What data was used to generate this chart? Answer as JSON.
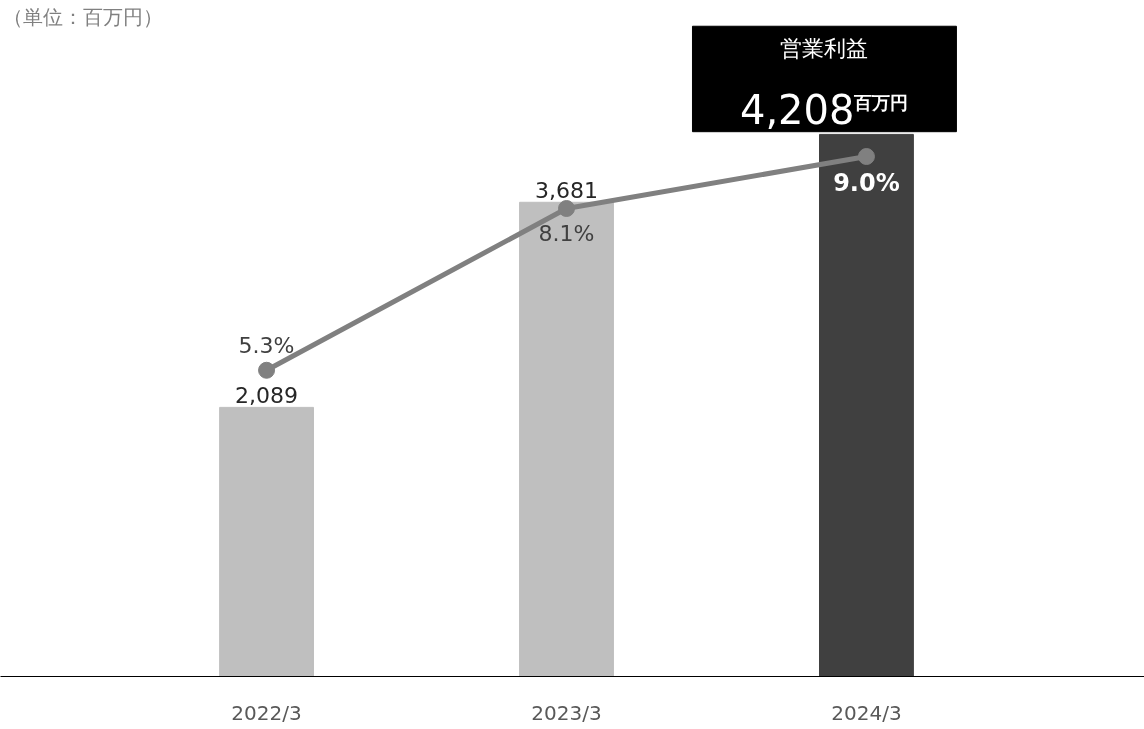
{
  "chart_data": {
    "type": "bar",
    "categories": [
      "2022/3",
      "2023/3",
      "2024/3"
    ],
    "tick_labels": "x",
    "grid": false,
    "series": [
      {
        "colors": [
          "#bfbfbf",
          "#bfbfbf",
          "#404040"
        ],
        "values": [
          2089,
          3681,
          4208
        ],
        "value_labels": [
          "2,089",
          "3,681",
          "4,208"
        ]
      },
      {
        "type": "line",
        "axis": "y2",
        "color": "#808080",
        "marker": "circle",
        "values": [
          5.3,
          8.1,
          9.0
        ],
        "value_labels": [
          "5.3%",
          "8.1%",
          "9.0%"
        ]
      }
    ],
    "annotations": [
      "（単位：百万円）",
      "営業利益",
      "百万円"
    ]
  }
}
